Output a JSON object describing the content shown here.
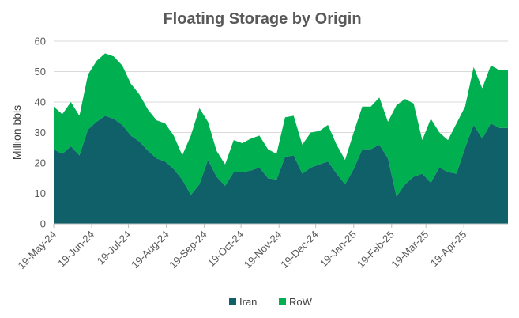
{
  "chart_data": {
    "type": "area",
    "title": "Floating Storage by Origin",
    "xlabel": "",
    "ylabel": "Million bbls",
    "ylim": [
      0,
      60
    ],
    "yticks": [
      "0",
      "10",
      "20",
      "30",
      "40",
      "50",
      "60"
    ],
    "xtick_labels": [
      "19-May-24",
      "19-Jun-24",
      "19-Jul-24",
      "19-Aug-24",
      "19-Sep-24",
      "19-Oct-24",
      "19-Nov-24",
      "19-Dec-24",
      "19-Jan-25",
      "19-Feb-25",
      "19-Mar-25",
      "19-Apr-25"
    ],
    "grid": true,
    "stacked": true,
    "legend_position": "bottom",
    "colors": {
      "Iran": "#0f6068",
      "RoW": "#00b050"
    },
    "x": [
      "2024-05-19",
      "2024-05-26",
      "2024-06-02",
      "2024-06-09",
      "2024-06-16",
      "2024-06-23",
      "2024-06-30",
      "2024-07-07",
      "2024-07-14",
      "2024-07-21",
      "2024-07-28",
      "2024-08-04",
      "2024-08-11",
      "2024-08-18",
      "2024-08-25",
      "2024-09-01",
      "2024-09-08",
      "2024-09-15",
      "2024-09-22",
      "2024-09-29",
      "2024-10-06",
      "2024-10-13",
      "2024-10-20",
      "2024-10-27",
      "2024-11-03",
      "2024-11-10",
      "2024-11-17",
      "2024-11-24",
      "2024-12-01",
      "2024-12-08",
      "2024-12-15",
      "2024-12-22",
      "2024-12-29",
      "2025-01-05",
      "2025-01-12",
      "2025-01-19",
      "2025-01-26",
      "2025-02-02",
      "2025-02-09",
      "2025-02-16",
      "2025-02-23",
      "2025-03-02",
      "2025-03-09",
      "2025-03-16",
      "2025-03-23",
      "2025-03-30",
      "2025-04-06",
      "2025-04-13",
      "2025-04-20",
      "2025-04-27",
      "2025-05-04",
      "2025-05-11",
      "2025-05-18",
      "2025-05-25"
    ],
    "series": [
      {
        "name": "Iran",
        "values": [
          24.5,
          23,
          25.5,
          22.5,
          31,
          33.5,
          35.5,
          34.5,
          32.5,
          29,
          27,
          24,
          21.5,
          20.5,
          18,
          14.5,
          9.5,
          13,
          21,
          15.5,
          12.5,
          17,
          17,
          17.5,
          18.5,
          15,
          14.5,
          22,
          22.5,
          16.5,
          18.5,
          19.5,
          20.5,
          16.5,
          13,
          18,
          24.5,
          24.5,
          26,
          21.5,
          9,
          13,
          15.5,
          16.5,
          13.5,
          18.5,
          17,
          16.5,
          25,
          32.5,
          28,
          33,
          31.5,
          31.5
        ]
      },
      {
        "name": "RoW",
        "values": [
          14,
          13,
          14.5,
          13,
          18,
          20,
          20.5,
          20.5,
          19.5,
          17,
          15.5,
          13.5,
          12.5,
          12.5,
          11,
          8,
          19.5,
          25,
          12.5,
          8.5,
          7,
          10.5,
          9.5,
          10.5,
          10.5,
          9.5,
          8.5,
          13,
          13,
          9.5,
          11.5,
          11,
          12,
          9.5,
          8,
          12,
          14,
          14,
          15.5,
          12,
          30,
          28,
          24,
          11,
          21,
          11.5,
          10.5,
          16.5,
          13.5,
          19,
          16.5,
          19,
          19,
          19
        ]
      }
    ]
  }
}
